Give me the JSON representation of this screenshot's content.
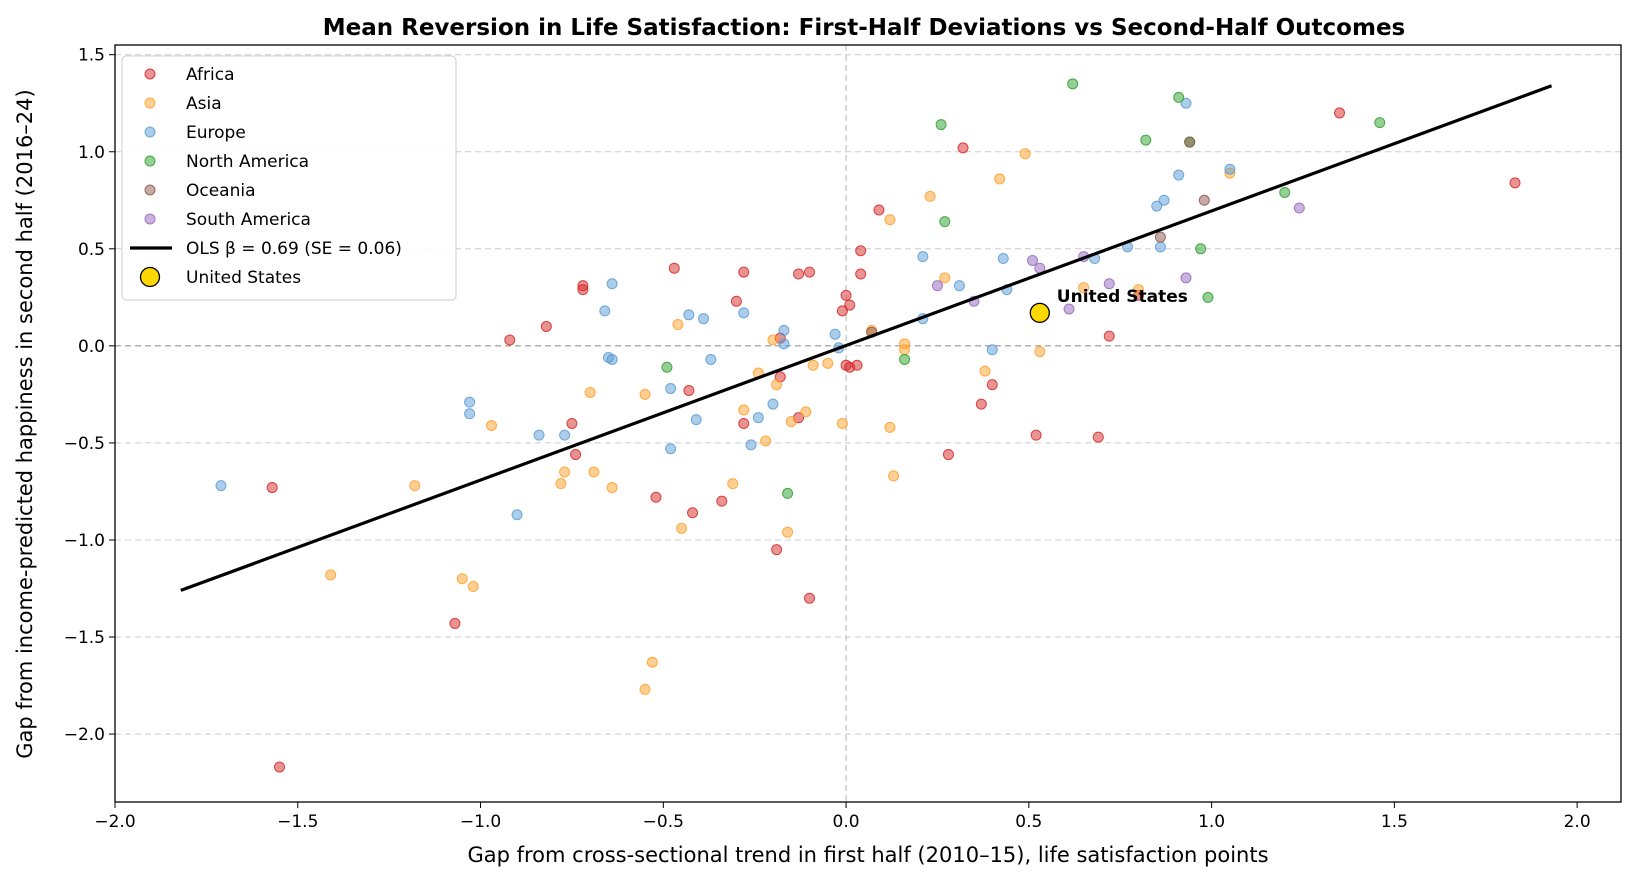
{
  "chart_data": {
    "type": "scatter",
    "title": "Mean Reversion in Life Satisfaction: First-Half Deviations vs Second-Half Outcomes",
    "xlabel": "Gap from cross-sectional trend in first half (2010–15), life satisfaction points",
    "ylabel": "Gap from income-predicted happiness in second half (2016–24)",
    "xlim": [
      -2.0,
      2.12
    ],
    "ylim": [
      -2.35,
      1.55
    ],
    "xticks": [
      -2.0,
      -1.5,
      -1.0,
      -0.5,
      0.0,
      0.5,
      1.0,
      1.5,
      2.0
    ],
    "yticks": [
      -2.0,
      -1.5,
      -1.0,
      -0.5,
      0.0,
      0.5,
      1.0,
      1.5
    ],
    "xtick_labels": [
      "−2.0",
      "−1.5",
      "−1.0",
      "−0.5",
      "0.0",
      "0.5",
      "1.0",
      "1.5",
      "2.0"
    ],
    "ytick_labels": [
      "−2.0",
      "−1.5",
      "−1.0",
      "−0.5",
      "0.0",
      "0.5",
      "1.0",
      "1.5"
    ],
    "grid": "horizontal dashed",
    "legend_position": "top-left",
    "series": [
      {
        "name": "Africa",
        "color": "#d62728",
        "points": [
          [
            -1.57,
            -0.73
          ],
          [
            -1.55,
            -2.17
          ],
          [
            -1.07,
            -1.43
          ],
          [
            -0.92,
            0.03
          ],
          [
            -0.82,
            0.1
          ],
          [
            -0.75,
            -0.4
          ],
          [
            -0.74,
            -0.56
          ],
          [
            -0.72,
            0.31
          ],
          [
            -0.72,
            0.29
          ],
          [
            -0.52,
            -0.78
          ],
          [
            -0.47,
            0.4
          ],
          [
            -0.43,
            -0.23
          ],
          [
            -0.42,
            -0.86
          ],
          [
            -0.34,
            -0.8
          ],
          [
            -0.3,
            0.23
          ],
          [
            -0.28,
            0.38
          ],
          [
            -0.28,
            -0.4
          ],
          [
            -0.19,
            -1.05
          ],
          [
            -0.18,
            -0.16
          ],
          [
            -0.18,
            0.04
          ],
          [
            -0.13,
            0.37
          ],
          [
            -0.1,
            0.38
          ],
          [
            -0.1,
            -1.3
          ],
          [
            -0.13,
            -0.37
          ],
          [
            -0.01,
            0.18
          ],
          [
            0.0,
            0.26
          ],
          [
            0.0,
            -0.1
          ],
          [
            0.01,
            0.21
          ],
          [
            0.01,
            -0.11
          ],
          [
            0.03,
            -0.1
          ],
          [
            0.04,
            0.37
          ],
          [
            0.04,
            0.49
          ],
          [
            0.09,
            0.7
          ],
          [
            0.32,
            1.02
          ],
          [
            0.37,
            -0.3
          ],
          [
            0.4,
            -0.2
          ],
          [
            0.28,
            -0.56
          ],
          [
            0.52,
            -0.46
          ],
          [
            0.69,
            -0.47
          ],
          [
            0.72,
            0.05
          ],
          [
            0.8,
            0.26
          ],
          [
            1.35,
            1.2
          ],
          [
            1.83,
            0.84
          ]
        ]
      },
      {
        "name": "Asia",
        "color": "#ff9f29",
        "points": [
          [
            -1.41,
            -1.18
          ],
          [
            -1.18,
            -0.72
          ],
          [
            -1.05,
            -1.2
          ],
          [
            -1.02,
            -1.24
          ],
          [
            -0.97,
            -0.41
          ],
          [
            -0.78,
            -0.71
          ],
          [
            -0.77,
            -0.65
          ],
          [
            -0.7,
            -0.24
          ],
          [
            -0.69,
            -0.65
          ],
          [
            -0.64,
            -0.73
          ],
          [
            -0.55,
            -0.25
          ],
          [
            -0.55,
            -1.77
          ],
          [
            -0.53,
            -1.63
          ],
          [
            -0.46,
            0.11
          ],
          [
            -0.45,
            -0.94
          ],
          [
            -0.31,
            -0.71
          ],
          [
            -0.28,
            -0.33
          ],
          [
            -0.24,
            -0.14
          ],
          [
            -0.22,
            -0.49
          ],
          [
            -0.2,
            0.03
          ],
          [
            -0.19,
            -0.2
          ],
          [
            -0.15,
            -0.39
          ],
          [
            -0.16,
            -0.96
          ],
          [
            -0.11,
            -0.34
          ],
          [
            -0.09,
            -0.1
          ],
          [
            -0.05,
            -0.09
          ],
          [
            -0.01,
            -0.4
          ],
          [
            0.07,
            0.08
          ],
          [
            0.12,
            0.65
          ],
          [
            0.12,
            -0.42
          ],
          [
            0.13,
            -0.67
          ],
          [
            0.16,
            0.01
          ],
          [
            0.16,
            -0.02
          ],
          [
            0.23,
            0.77
          ],
          [
            0.27,
            0.35
          ],
          [
            0.38,
            -0.13
          ],
          [
            0.42,
            0.86
          ],
          [
            0.49,
            0.99
          ],
          [
            0.53,
            -0.03
          ],
          [
            0.65,
            0.3
          ],
          [
            0.8,
            0.29
          ],
          [
            1.05,
            0.89
          ]
        ]
      },
      {
        "name": "Europe",
        "color": "#5a9bd5",
        "points": [
          [
            -1.71,
            -0.72
          ],
          [
            -1.03,
            -0.29
          ],
          [
            -1.03,
            -0.35
          ],
          [
            -0.9,
            -0.87
          ],
          [
            -0.84,
            -0.46
          ],
          [
            -0.77,
            -0.46
          ],
          [
            -0.66,
            0.18
          ],
          [
            -0.65,
            -0.06
          ],
          [
            -0.64,
            -0.07
          ],
          [
            -0.64,
            0.32
          ],
          [
            -0.48,
            -0.22
          ],
          [
            -0.48,
            -0.53
          ],
          [
            -0.43,
            0.16
          ],
          [
            -0.41,
            -0.38
          ],
          [
            -0.39,
            0.14
          ],
          [
            -0.37,
            -0.07
          ],
          [
            -0.28,
            0.17
          ],
          [
            -0.26,
            -0.51
          ],
          [
            -0.24,
            -0.37
          ],
          [
            -0.2,
            -0.3
          ],
          [
            -0.17,
            0.08
          ],
          [
            -0.17,
            0.01
          ],
          [
            -0.03,
            0.06
          ],
          [
            -0.02,
            -0.01
          ],
          [
            0.21,
            0.46
          ],
          [
            0.21,
            0.14
          ],
          [
            0.31,
            0.31
          ],
          [
            0.4,
            -0.02
          ],
          [
            0.43,
            0.45
          ],
          [
            0.44,
            0.29
          ],
          [
            0.68,
            0.45
          ],
          [
            0.77,
            0.51
          ],
          [
            0.85,
            0.72
          ],
          [
            0.86,
            0.51
          ],
          [
            0.87,
            0.75
          ],
          [
            0.91,
            0.88
          ],
          [
            0.93,
            1.25
          ],
          [
            1.05,
            0.91
          ]
        ]
      },
      {
        "name": "North America",
        "color": "#2ca02c",
        "points": [
          [
            -0.49,
            -0.11
          ],
          [
            -0.16,
            -0.76
          ],
          [
            0.16,
            -0.07
          ],
          [
            0.26,
            1.14
          ],
          [
            0.27,
            0.64
          ],
          [
            0.62,
            1.35
          ],
          [
            0.82,
            1.06
          ],
          [
            0.91,
            1.28
          ],
          [
            0.94,
            1.05
          ],
          [
            0.97,
            0.5
          ],
          [
            0.99,
            0.25
          ],
          [
            1.2,
            0.79
          ],
          [
            1.46,
            1.15
          ]
        ]
      },
      {
        "name": "Oceania",
        "color": "#8c564b",
        "points": [
          [
            0.07,
            0.07
          ],
          [
            0.86,
            0.56
          ],
          [
            0.94,
            1.05
          ],
          [
            0.98,
            0.75
          ]
        ]
      },
      {
        "name": "South America",
        "color": "#9467bd",
        "points": [
          [
            0.25,
            0.31
          ],
          [
            0.35,
            0.23
          ],
          [
            0.51,
            0.44
          ],
          [
            0.53,
            0.4
          ],
          [
            0.61,
            0.19
          ],
          [
            0.65,
            0.46
          ],
          [
            0.72,
            0.32
          ],
          [
            0.93,
            0.35
          ],
          [
            1.24,
            0.71
          ]
        ]
      }
    ],
    "fit_line": {
      "label": "OLS  β = 0.69  (SE = 0.06)",
      "color": "#000000",
      "x": [
        -1.82,
        1.93
      ],
      "y": [
        -1.26,
        1.34
      ]
    },
    "highlight": {
      "label": "United States",
      "legend_label": "United States",
      "color": "#ffd700",
      "x": 0.53,
      "y": 0.17
    }
  }
}
